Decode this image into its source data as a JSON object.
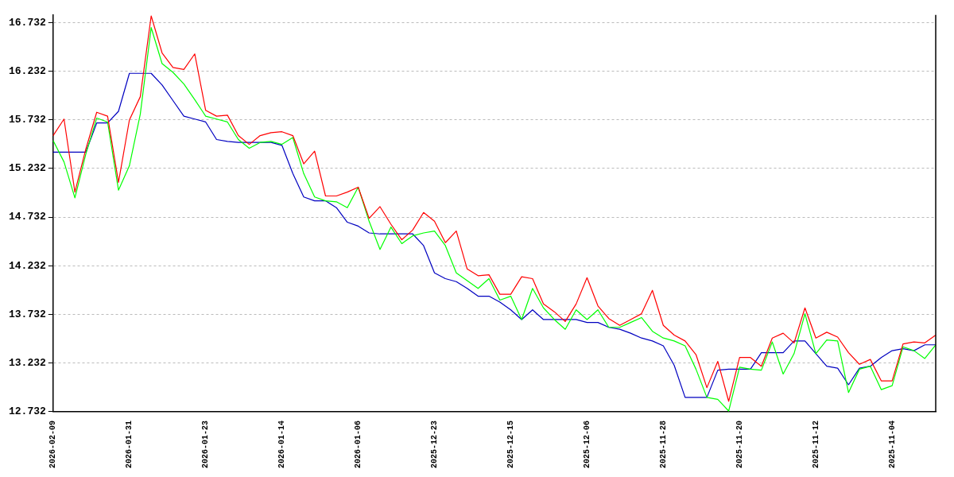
{
  "chart_data": {
    "type": "line",
    "categories": [
      "2026-02-09",
      null,
      null,
      null,
      null,
      null,
      null,
      "2026-01-31",
      null,
      null,
      null,
      null,
      null,
      null,
      "2026-01-23",
      null,
      null,
      null,
      null,
      null,
      null,
      "2026-01-14",
      null,
      null,
      null,
      null,
      null,
      null,
      "2026-01-06",
      null,
      null,
      null,
      null,
      null,
      null,
      "2025-12-23",
      null,
      null,
      null,
      null,
      null,
      null,
      "2025-12-15",
      null,
      null,
      null,
      null,
      null,
      null,
      "2025-12-06",
      null,
      null,
      null,
      null,
      null,
      null,
      "2025-11-28",
      null,
      null,
      null,
      null,
      null,
      null,
      "2025-11-20",
      null,
      null,
      null,
      null,
      null,
      null,
      "2025-11-12",
      null,
      null,
      null,
      null,
      null,
      null,
      "2025-11-04",
      null,
      null,
      null,
      null
    ],
    "series": [
      {
        "color": "#ff0000",
        "values": [
          15.57,
          15.74,
          14.99,
          15.43,
          15.81,
          15.77,
          15.09,
          15.73,
          15.97,
          16.8,
          16.42,
          16.27,
          16.25,
          16.41,
          15.83,
          15.77,
          15.78,
          15.57,
          15.48,
          15.57,
          15.6,
          15.61,
          15.57,
          15.28,
          15.41,
          14.95,
          14.95,
          14.99,
          15.04,
          14.72,
          14.84,
          14.66,
          14.5,
          14.6,
          14.78,
          14.69,
          14.47,
          14.59,
          14.2,
          14.13,
          14.14,
          13.94,
          13.94,
          14.12,
          14.1,
          13.84,
          13.76,
          13.66,
          13.84,
          14.11,
          13.82,
          13.69,
          13.62,
          13.68,
          13.74,
          13.98,
          13.62,
          13.52,
          13.46,
          13.32,
          12.98,
          13.25,
          12.84,
          13.29,
          13.29,
          13.2,
          13.49,
          13.54,
          13.44,
          13.8,
          13.49,
          13.55,
          13.5,
          13.34,
          13.22,
          13.27,
          13.05,
          13.05,
          13.43,
          13.45,
          13.44,
          13.52
        ]
      },
      {
        "color": "#00ff00",
        "values": [
          15.52,
          15.3,
          14.93,
          15.38,
          15.75,
          15.71,
          15.01,
          15.26,
          15.79,
          16.68,
          16.31,
          16.22,
          16.1,
          15.94,
          15.77,
          15.74,
          15.71,
          15.53,
          15.44,
          15.5,
          15.51,
          15.48,
          15.55,
          15.18,
          14.94,
          14.9,
          14.89,
          14.83,
          15.04,
          14.69,
          14.4,
          14.63,
          14.46,
          14.54,
          14.57,
          14.59,
          14.44,
          14.16,
          14.08,
          14.0,
          14.1,
          13.88,
          13.92,
          13.68,
          14.0,
          13.8,
          13.68,
          13.58,
          13.78,
          13.68,
          13.78,
          13.6,
          13.6,
          13.65,
          13.7,
          13.56,
          13.49,
          13.46,
          13.41,
          13.17,
          12.88,
          12.86,
          12.74,
          13.19,
          13.17,
          13.16,
          13.45,
          13.12,
          13.33,
          13.74,
          13.33,
          13.47,
          13.46,
          12.93,
          13.17,
          13.2,
          12.96,
          13.0,
          13.4,
          13.36,
          13.28,
          13.42
        ]
      },
      {
        "color": "#0000c0",
        "values": [
          15.4,
          15.4,
          15.4,
          15.4,
          15.7,
          15.7,
          15.82,
          16.21,
          16.21,
          16.21,
          16.09,
          15.93,
          15.77,
          15.74,
          15.71,
          15.53,
          15.51,
          15.5,
          15.5,
          15.5,
          15.5,
          15.47,
          15.18,
          14.94,
          14.9,
          14.9,
          14.83,
          14.68,
          14.64,
          14.57,
          14.56,
          14.56,
          14.56,
          14.56,
          14.44,
          14.16,
          14.1,
          14.07,
          14.0,
          13.92,
          13.92,
          13.86,
          13.78,
          13.68,
          13.78,
          13.68,
          13.68,
          13.68,
          13.68,
          13.65,
          13.65,
          13.6,
          13.58,
          13.54,
          13.49,
          13.46,
          13.41,
          13.21,
          12.88,
          12.88,
          12.88,
          13.16,
          13.17,
          13.17,
          13.17,
          13.34,
          13.34,
          13.34,
          13.46,
          13.46,
          13.33,
          13.2,
          13.18,
          13.01,
          13.18,
          13.2,
          13.29,
          13.36,
          13.38,
          13.36,
          13.42,
          13.42
        ]
      }
    ],
    "ylim": [
      12.732,
      16.81
    ],
    "yticks": [
      12.732,
      13.232,
      13.732,
      14.232,
      14.732,
      15.232,
      15.732,
      16.232,
      16.732
    ],
    "grid": "y",
    "legend": false,
    "marker": "none",
    "line_style": "solid"
  }
}
